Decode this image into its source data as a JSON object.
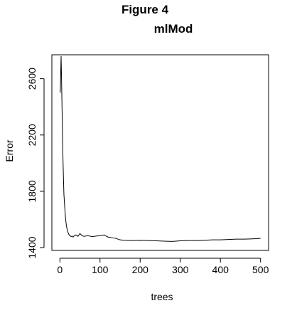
{
  "figure_title": "Figure 4",
  "chart_data": {
    "type": "line",
    "title": "mlMod",
    "xlabel": "trees",
    "ylabel": "Error",
    "xlim": [
      -20,
      520
    ],
    "ylim": [
      1380,
      2770
    ],
    "xticks": [
      0,
      100,
      200,
      300,
      400,
      500
    ],
    "yticks": [
      1400,
      1800,
      2200,
      2600
    ],
    "line_color": "#000000",
    "series": [
      {
        "x": [
          1,
          2,
          3,
          4,
          5,
          6,
          7,
          8,
          9,
          10,
          12,
          14,
          16,
          18,
          20,
          22,
          25,
          28,
          30,
          33,
          36,
          40,
          45,
          50,
          55,
          60,
          70,
          80,
          90,
          100,
          110,
          120,
          130,
          140,
          150,
          160,
          180,
          200,
          220,
          240,
          260,
          280,
          300,
          320,
          340,
          360,
          380,
          400,
          420,
          440,
          460,
          480,
          500
        ],
        "y": [
          2500,
          2640,
          2760,
          2620,
          2450,
          2280,
          2120,
          1990,
          1880,
          1780,
          1690,
          1610,
          1560,
          1530,
          1510,
          1495,
          1485,
          1478,
          1482,
          1475,
          1485,
          1490,
          1480,
          1500,
          1485,
          1480,
          1485,
          1478,
          1482,
          1485,
          1490,
          1475,
          1470,
          1465,
          1455,
          1452,
          1450,
          1452,
          1450,
          1448,
          1446,
          1444,
          1448,
          1450,
          1450,
          1452,
          1455,
          1455,
          1458,
          1460,
          1460,
          1462,
          1465
        ]
      }
    ]
  }
}
